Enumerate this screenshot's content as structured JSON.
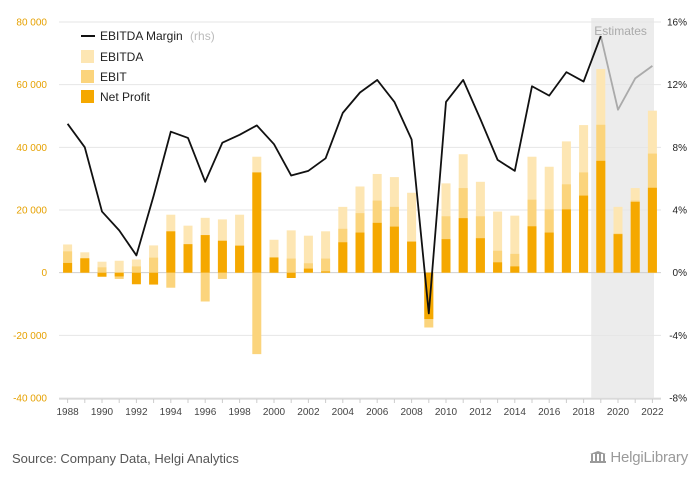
{
  "chart_data": {
    "type": "bar",
    "x": [
      1988,
      1989,
      1990,
      1991,
      1992,
      1993,
      1994,
      1995,
      1996,
      1997,
      1998,
      1999,
      2000,
      2001,
      2002,
      2003,
      2004,
      2005,
      2006,
      2007,
      2008,
      2009,
      2010,
      2011,
      2012,
      2013,
      2014,
      2015,
      2016,
      2017,
      2018,
      2019,
      2020,
      2021,
      2022
    ],
    "x_ticks": [
      "1988",
      "1990",
      "1992",
      "1994",
      "1996",
      "1998",
      "2000",
      "2002",
      "2004",
      "2006",
      "2008",
      "2010",
      "2012",
      "2014",
      "2016",
      "2018",
      "2020",
      "2022"
    ],
    "y_left": {
      "ticks": [
        80000,
        60000,
        40000,
        20000,
        0,
        -20000,
        -40000
      ],
      "tick_labels": [
        "80 000",
        "60 000",
        "40 000",
        "20 000",
        "0",
        "-20 000",
        "-40 000"
      ],
      "range": [
        -40000,
        80000
      ]
    },
    "y_right": {
      "ticks": [
        16,
        12,
        8,
        4,
        0,
        -4,
        -8
      ],
      "tick_labels": [
        "16%",
        "12%",
        "8%",
        "4%",
        "0%",
        "-4%",
        "-8%"
      ],
      "range": [
        -8,
        16
      ]
    },
    "estimates_from": 2019,
    "estimates_label": "Estimates",
    "series": [
      {
        "name": "EBITDA",
        "kind": "bar",
        "color": "#fde6b3",
        "values": [
          9000,
          6500,
          3500,
          3800,
          4200,
          8700,
          18500,
          15000,
          17500,
          17000,
          18500,
          37000,
          10500,
          13500,
          11800,
          13200,
          21000,
          27500,
          31500,
          30500,
          25500,
          -12500,
          28500,
          37800,
          29000,
          19500,
          18200,
          37000,
          33800,
          41900,
          47100,
          65000,
          21000,
          27000,
          51700
        ]
      },
      {
        "name": "EBIT",
        "kind": "bar",
        "color": "#fbd47c",
        "values": [
          6800,
          4500,
          1700,
          -2000,
          2000,
          4800,
          -4800,
          5500,
          -9200,
          -2000,
          8700,
          -26000,
          5000,
          4500,
          3000,
          4500,
          14000,
          19000,
          23000,
          21000,
          10000,
          -17500,
          18000,
          27000,
          18000,
          7000,
          6000,
          23300,
          20200,
          28200,
          32000,
          47200,
          12500,
          23000,
          38000
        ]
      },
      {
        "name": "Net Profit",
        "kind": "bar",
        "color": "#f5a800",
        "values": [
          3100,
          4600,
          -1300,
          -1200,
          -3700,
          -3800,
          13200,
          9100,
          12000,
          10200,
          8600,
          32000,
          4800,
          -1700,
          1300,
          400,
          9700,
          12800,
          15900,
          14700,
          9900,
          -14800,
          10700,
          17400,
          11000,
          3300,
          2000,
          14800,
          12800,
          20200,
          24600,
          35700,
          12300,
          22600,
          27100
        ]
      },
      {
        "name": "EBITDA Margin",
        "suffix": "(rhs)",
        "kind": "line",
        "axis": "right",
        "color": "#111111",
        "estimate_color": "#aaaaaa",
        "values": [
          9.5,
          8.0,
          3.9,
          2.7,
          1.1,
          4.9,
          9.0,
          8.6,
          5.8,
          8.3,
          8.8,
          9.4,
          8.2,
          6.2,
          6.5,
          7.3,
          10.2,
          11.5,
          12.3,
          10.9,
          8.5,
          -2.6,
          10.9,
          12.3,
          9.8,
          7.2,
          6.5,
          11.9,
          11.3,
          12.8,
          12.2,
          15.1,
          10.4,
          12.4,
          13.2
        ]
      }
    ],
    "legend_position": "top-left",
    "grid": true
  },
  "footer": {
    "source": "Source: Company Data, Helgi Analytics",
    "brand": "HelgiLibrary"
  }
}
